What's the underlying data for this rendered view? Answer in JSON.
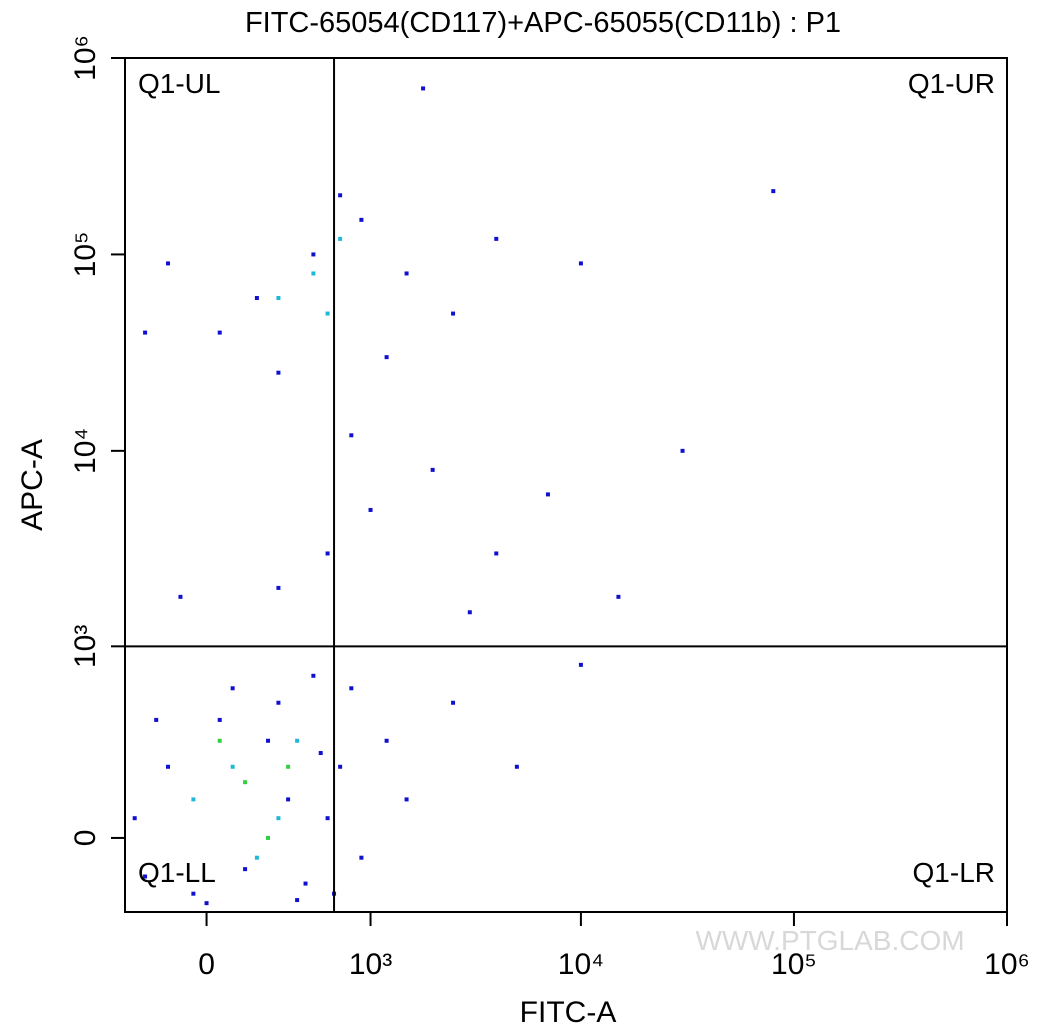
{
  "chart_data": {
    "type": "scatter",
    "title": "FITC-65054(CD117)+APC-65055(CD11b) : P1",
    "x_label": "FITC-A",
    "y_label": "APC-A",
    "xscale": "biexponential",
    "yscale": "biexponential",
    "xlim": [
      -350,
      1000000
    ],
    "ylim": [
      -210,
      1000000
    ],
    "xticks": [
      0,
      {
        "value": 1000,
        "label": "10³"
      },
      {
        "value": 10000,
        "label": "10⁴"
      },
      {
        "value": 100000,
        "label": "10⁵"
      },
      {
        "value": 1000000,
        "label": "10⁶"
      }
    ],
    "yticks": [
      0,
      {
        "value": 1000,
        "label": "10³"
      },
      {
        "value": 10000,
        "label": "10⁴"
      },
      {
        "value": 100000,
        "label": "10⁵"
      },
      {
        "value": 1000000,
        "label": "10⁶"
      }
    ],
    "gates": {
      "x": 650,
      "y": 1000
    },
    "quadrants": {
      "ul": "Q1-UL",
      "ur": "Q1-UR",
      "ll": "Q1-LL",
      "lr": "Q1-LR"
    },
    "watermark": "WWW.PTGLAB.COM",
    "series": [
      {
        "color": "#1010d0",
        "x": [
          -250,
          -150,
          -50,
          50,
          150,
          250,
          350,
          450,
          550,
          600,
          -300,
          100,
          300,
          500,
          700,
          900,
          1200,
          800,
          -200,
          0,
          400,
          650,
          1500,
          2500,
          5000,
          10000,
          3000,
          600,
          1000,
          300,
          2000,
          4000,
          7000,
          -100,
          800,
          15000,
          200,
          500,
          900,
          1500,
          -150,
          50,
          700,
          1200,
          2500,
          300,
          4000,
          -250,
          10000,
          80000,
          1800,
          30000
        ],
        "values": [
          -100,
          200,
          -150,
          400,
          -80,
          300,
          100,
          -120,
          250,
          50,
          50,
          600,
          500,
          700,
          200,
          -50,
          300,
          600,
          400,
          -180,
          -170,
          -150,
          100,
          500,
          200,
          800,
          1500,
          3000,
          5000,
          2000,
          8000,
          3000,
          6000,
          1800,
          12000,
          1800,
          60000,
          100000,
          150000,
          80000,
          90000,
          40000,
          200000,
          30000,
          50000,
          25000,
          120000,
          40000,
          90000,
          210000,
          700000,
          10000
        ]
      },
      {
        "color": "#20b8d8",
        "x": [
          100,
          300,
          200,
          -50,
          400,
          500,
          300,
          700,
          600
        ],
        "values": [
          200,
          50,
          -50,
          100,
          300,
          80000,
          60000,
          120000,
          50000
        ]
      },
      {
        "color": "#30d040",
        "x": [
          150,
          250,
          50,
          350
        ],
        "values": [
          150,
          0,
          300,
          200
        ]
      }
    ]
  }
}
